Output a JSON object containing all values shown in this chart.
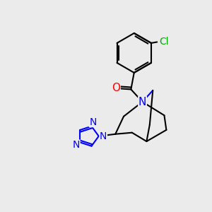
{
  "background_color": "#ebebeb",
  "atom_colors": {
    "C": "#000000",
    "N": "#0000ff",
    "O": "#ff0000",
    "Cl": "#00aa00"
  },
  "bond_color": "#000000",
  "bond_width": 1.5,
  "font_size_atom": 10
}
